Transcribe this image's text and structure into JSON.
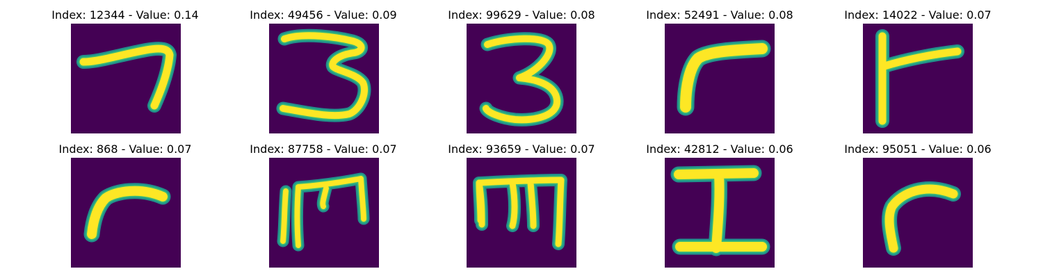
{
  "colors": {
    "background": "#440154",
    "mid": "#21918c",
    "edge": "#35b779",
    "high": "#fde725"
  },
  "panels": [
    {
      "title": "Index: 12344 - Value: 0.14",
      "glyph": "glyph-seven"
    },
    {
      "title": "Index: 49456 - Value: 0.09",
      "glyph": "glyph-three"
    },
    {
      "title": "Index: 99629 - Value: 0.08",
      "glyph": "glyph-three"
    },
    {
      "title": "Index: 52491 - Value: 0.08",
      "glyph": "glyph-curved-r"
    },
    {
      "title": "Index: 14022 - Value: 0.07",
      "glyph": "glyph-t-bar"
    },
    {
      "title": "Index: 868 - Value: 0.07",
      "glyph": "glyph-curved-r"
    },
    {
      "title": "Index: 87758 - Value: 0.07",
      "glyph": "glyph-m-shape"
    },
    {
      "title": "Index: 93659 - Value: 0.07",
      "glyph": "glyph-m-shape"
    },
    {
      "title": "Index: 42812 - Value: 0.06",
      "glyph": "glyph-i-beam"
    },
    {
      "title": "Index: 95051 - Value: 0.06",
      "glyph": "glyph-curved-r"
    }
  ]
}
